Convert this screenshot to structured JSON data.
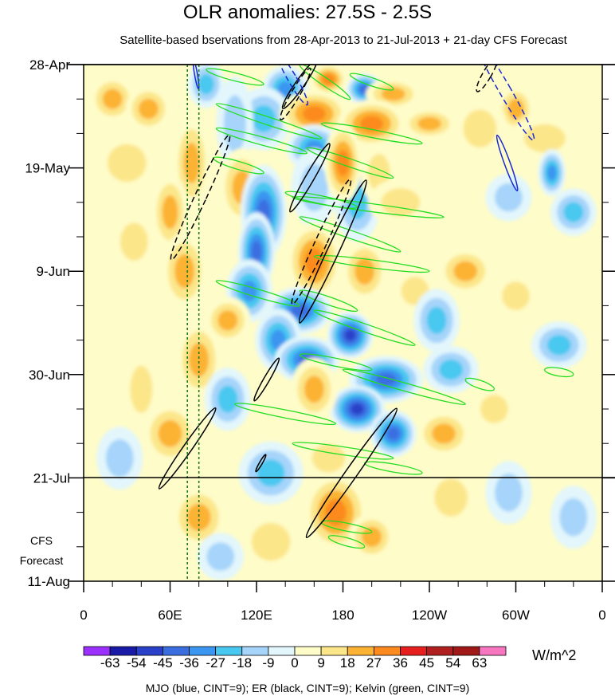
{
  "title": "OLR anomalies: 27.5S - 2.5S",
  "subtitle": "Satellite-based bservations from 28-Apr-2013 to 21-Jul-2013 + 21-day CFS Forecast",
  "chart_data": {
    "type": "heatmap",
    "title": "OLR anomalies: 27.5S - 2.5S",
    "subtitle": "Satellite-based bservations from 28-Apr-2013 to 21-Jul-2013 + 21-day CFS Forecast",
    "x_axis": {
      "ticks": [
        "0",
        "60E",
        "120E",
        "180",
        "120W",
        "60W",
        "0"
      ],
      "range_deg_east": [
        0,
        360
      ]
    },
    "y_axis": {
      "ticks": [
        "28-Apr",
        "19-May",
        "9-Jun",
        "30-Jun",
        "21-Jul",
        "11-Aug"
      ],
      "range": [
        "28-Apr-2013",
        "11-Aug-2013"
      ],
      "observation_end": "21-Jul"
    },
    "forecast_note": [
      "CFS",
      "Forecast"
    ],
    "colorbar": {
      "units": "W/m^2",
      "levels": [
        -63,
        -54,
        -45,
        -36,
        -27,
        -18,
        -9,
        0,
        9,
        18,
        27,
        36,
        45,
        54,
        63
      ],
      "colors": [
        "#9b30ff",
        "#1a1aa8",
        "#2a40c8",
        "#3a6ee0",
        "#3a96f0",
        "#48c8f0",
        "#a6d4fa",
        "#e2f6fc",
        "#fefcc8",
        "#fce68a",
        "#fcb232",
        "#fc8a1e",
        "#e61e1e",
        "#b02020",
        "#a01818",
        "#f876c0"
      ]
    },
    "vertical_reference_lines_deg_east": [
      72,
      80
    ],
    "contour_legend": "MJO (blue, CINT=9); ER (black, CINT=9); Kelvin (green, CINT=9)",
    "series": [
      {
        "name": "MJO",
        "color": "#1a2ad0"
      },
      {
        "name": "ER",
        "color": "#000000"
      },
      {
        "name": "Kelvin",
        "color": "#22dd22"
      }
    ],
    "blobs": [
      {
        "lon": 140,
        "day": 5,
        "rx": 10,
        "ry": 3,
        "v": -36
      },
      {
        "lon": 170,
        "day": 3,
        "rx": 8,
        "ry": 2,
        "v": 36
      },
      {
        "lon": 195,
        "day": 5,
        "rx": 8,
        "ry": 2,
        "v": -45
      },
      {
        "lon": 215,
        "day": 6,
        "rx": 12,
        "ry": 2,
        "v": 27
      },
      {
        "lon": 125,
        "day": 11,
        "rx": 12,
        "ry": 4,
        "v": -27
      },
      {
        "lon": 160,
        "day": 10,
        "rx": 15,
        "ry": 3,
        "v": 36
      },
      {
        "lon": 200,
        "day": 12,
        "rx": 15,
        "ry": 3,
        "v": 36
      },
      {
        "lon": 240,
        "day": 12,
        "rx": 12,
        "ry": 2,
        "v": 27
      },
      {
        "lon": 20,
        "day": 7,
        "rx": 10,
        "ry": 3,
        "v": 27
      },
      {
        "lon": 45,
        "day": 9,
        "rx": 10,
        "ry": 3,
        "v": 27
      },
      {
        "lon": 85,
        "day": 4,
        "rx": 8,
        "ry": 3,
        "v": -27
      },
      {
        "lon": 105,
        "day": 12,
        "rx": 8,
        "ry": 6,
        "v": -18
      },
      {
        "lon": 160,
        "day": 17,
        "rx": 12,
        "ry": 3,
        "v": -36
      },
      {
        "lon": 300,
        "day": 9,
        "rx": 8,
        "ry": 3,
        "v": 27
      },
      {
        "lon": 275,
        "day": 13,
        "rx": 12,
        "ry": 4,
        "v": 18
      },
      {
        "lon": 320,
        "day": 15,
        "rx": 15,
        "ry": 3,
        "v": 18
      },
      {
        "lon": 325,
        "day": 22,
        "rx": 6,
        "ry": 3,
        "v": -36
      },
      {
        "lon": 30,
        "day": 20,
        "rx": 14,
        "ry": 4,
        "v": 18
      },
      {
        "lon": 75,
        "day": 20,
        "rx": 8,
        "ry": 6,
        "v": 27
      },
      {
        "lon": 110,
        "day": 25,
        "rx": 10,
        "ry": 5,
        "v": 27
      },
      {
        "lon": 125,
        "day": 30,
        "rx": 10,
        "ry": 6,
        "v": -45
      },
      {
        "lon": 120,
        "day": 38,
        "rx": 8,
        "ry": 5,
        "v": -45
      },
      {
        "lon": 160,
        "day": 25,
        "rx": 10,
        "ry": 5,
        "v": -18
      },
      {
        "lon": 190,
        "day": 28,
        "rx": 10,
        "ry": 5,
        "v": -27
      },
      {
        "lon": 180,
        "day": 20,
        "rx": 8,
        "ry": 5,
        "v": 36
      },
      {
        "lon": 205,
        "day": 22,
        "rx": 8,
        "ry": 4,
        "v": 18
      },
      {
        "lon": 220,
        "day": 28,
        "rx": 14,
        "ry": 3,
        "v": 18
      },
      {
        "lon": 295,
        "day": 27,
        "rx": 10,
        "ry": 3,
        "v": -18
      },
      {
        "lon": 340,
        "day": 30,
        "rx": 10,
        "ry": 3,
        "v": -27
      },
      {
        "lon": 60,
        "day": 30,
        "rx": 8,
        "ry": 5,
        "v": 27
      },
      {
        "lon": 35,
        "day": 36,
        "rx": 10,
        "ry": 4,
        "v": 18
      },
      {
        "lon": 160,
        "day": 40,
        "rx": 12,
        "ry": 5,
        "v": 36
      },
      {
        "lon": 195,
        "day": 42,
        "rx": 10,
        "ry": 4,
        "v": 27
      },
      {
        "lon": 230,
        "day": 46,
        "rx": 10,
        "ry": 3,
        "v": 18
      },
      {
        "lon": 265,
        "day": 42,
        "rx": 12,
        "ry": 3,
        "v": 27
      },
      {
        "lon": 300,
        "day": 47,
        "rx": 10,
        "ry": 3,
        "v": 18
      },
      {
        "lon": 115,
        "day": 46,
        "rx": 10,
        "ry": 4,
        "v": -36
      },
      {
        "lon": 150,
        "day": 50,
        "rx": 14,
        "ry": 3,
        "v": -45
      },
      {
        "lon": 185,
        "day": 55,
        "rx": 10,
        "ry": 3,
        "v": -54
      },
      {
        "lon": 70,
        "day": 42,
        "rx": 10,
        "ry": 5,
        "v": 27
      },
      {
        "lon": 245,
        "day": 52,
        "rx": 10,
        "ry": 4,
        "v": -27
      },
      {
        "lon": 330,
        "day": 57,
        "rx": 12,
        "ry": 3,
        "v": -27
      },
      {
        "lon": 100,
        "day": 52,
        "rx": 10,
        "ry": 3,
        "v": 27
      },
      {
        "lon": 135,
        "day": 56,
        "rx": 10,
        "ry": 4,
        "v": -36
      },
      {
        "lon": 155,
        "day": 60,
        "rx": 14,
        "ry": 3,
        "v": -45
      },
      {
        "lon": 210,
        "day": 64,
        "rx": 16,
        "ry": 3,
        "v": -45
      },
      {
        "lon": 255,
        "day": 62,
        "rx": 12,
        "ry": 3,
        "v": -27
      },
      {
        "lon": 80,
        "day": 60,
        "rx": 10,
        "ry": 5,
        "v": 27
      },
      {
        "lon": 190,
        "day": 70,
        "rx": 12,
        "ry": 3,
        "v": -54
      },
      {
        "lon": 215,
        "day": 75,
        "rx": 10,
        "ry": 3,
        "v": -45
      },
      {
        "lon": 100,
        "day": 68,
        "rx": 10,
        "ry": 4,
        "v": -27
      },
      {
        "lon": 160,
        "day": 66,
        "rx": 10,
        "ry": 4,
        "v": 27
      },
      {
        "lon": 250,
        "day": 75,
        "rx": 12,
        "ry": 3,
        "v": 27
      },
      {
        "lon": 285,
        "day": 70,
        "rx": 10,
        "ry": 3,
        "v": 18
      },
      {
        "lon": 40,
        "day": 66,
        "rx": 8,
        "ry": 5,
        "v": 18
      },
      {
        "lon": 60,
        "day": 75,
        "rx": 12,
        "ry": 4,
        "v": 27
      },
      {
        "lon": 25,
        "day": 80,
        "rx": 10,
        "ry": 4,
        "v": -18
      },
      {
        "lon": 130,
        "day": 83,
        "rx": 14,
        "ry": 4,
        "v": -27
      },
      {
        "lon": 170,
        "day": 80,
        "rx": 12,
        "ry": 3,
        "v": 18
      },
      {
        "lon": 175,
        "day": 91,
        "rx": 14,
        "ry": 5,
        "v": 36
      },
      {
        "lon": 200,
        "day": 96,
        "rx": 10,
        "ry": 3,
        "v": 27
      },
      {
        "lon": 255,
        "day": 88,
        "rx": 12,
        "ry": 4,
        "v": 18
      },
      {
        "lon": 295,
        "day": 87,
        "rx": 10,
        "ry": 4,
        "v": -18
      },
      {
        "lon": 80,
        "day": 92,
        "rx": 12,
        "ry": 4,
        "v": 27
      },
      {
        "lon": 130,
        "day": 97,
        "rx": 14,
        "ry": 4,
        "v": 18
      },
      {
        "lon": 340,
        "day": 92,
        "rx": 10,
        "ry": 4,
        "v": -18
      },
      {
        "lon": 95,
        "day": 100,
        "rx": 10,
        "ry": 3,
        "v": -18
      }
    ],
    "kelvin_bands": [
      {
        "lon1": 85,
        "d1": 1,
        "lon2": 125,
        "d2": 4
      },
      {
        "lon1": 150,
        "d1": 0,
        "lon2": 185,
        "d2": 7
      },
      {
        "lon1": 185,
        "d1": 2,
        "lon2": 215,
        "d2": 5
      },
      {
        "lon1": 92,
        "d1": 8,
        "lon2": 165,
        "d2": 15
      },
      {
        "lon1": 165,
        "d1": 12,
        "lon2": 235,
        "d2": 16
      },
      {
        "lon1": 92,
        "d1": 13,
        "lon2": 155,
        "d2": 18
      },
      {
        "lon1": 155,
        "d1": 17,
        "lon2": 215,
        "d2": 23
      },
      {
        "lon1": 90,
        "d1": 19,
        "lon2": 125,
        "d2": 22
      },
      {
        "lon1": 145,
        "d1": 27,
        "lon2": 250,
        "d2": 31
      },
      {
        "lon1": 140,
        "d1": 26,
        "lon2": 190,
        "d2": 29
      },
      {
        "lon1": 150,
        "d1": 31,
        "lon2": 220,
        "d2": 38
      },
      {
        "lon1": 160,
        "d1": 39,
        "lon2": 240,
        "d2": 42
      },
      {
        "lon1": 92,
        "d1": 44,
        "lon2": 150,
        "d2": 49
      },
      {
        "lon1": 150,
        "d1": 46,
        "lon2": 190,
        "d2": 50
      },
      {
        "lon1": 160,
        "d1": 50,
        "lon2": 230,
        "d2": 57
      },
      {
        "lon1": 150,
        "d1": 59,
        "lon2": 200,
        "d2": 62
      },
      {
        "lon1": 180,
        "d1": 62,
        "lon2": 265,
        "d2": 69
      },
      {
        "lon1": 265,
        "d1": 64,
        "lon2": 285,
        "d2": 66
      },
      {
        "lon1": 105,
        "d1": 69,
        "lon2": 175,
        "d2": 73
      },
      {
        "lon1": 145,
        "d1": 77,
        "lon2": 215,
        "d2": 80
      },
      {
        "lon1": 195,
        "d1": 81,
        "lon2": 235,
        "d2": 83
      },
      {
        "lon1": 165,
        "d1": 93,
        "lon2": 200,
        "d2": 95
      },
      {
        "lon1": 170,
        "d1": 96,
        "lon2": 195,
        "d2": 98
      },
      {
        "lon1": 320,
        "d1": 62,
        "lon2": 340,
        "d2": 63
      }
    ],
    "er_ellipses": [
      {
        "lon": 150,
        "day": 4,
        "rx": 3,
        "ry": 6,
        "rot": 35,
        "dash": false
      },
      {
        "lon": 157,
        "day": 23,
        "rx": 3,
        "ry": 8,
        "rot": 30,
        "dash": false
      },
      {
        "lon": 165,
        "day": 36,
        "rx": 4,
        "ry": 14,
        "rot": 25,
        "dash": true
      },
      {
        "lon": 173,
        "day": 38,
        "rx": 4,
        "ry": 16,
        "rot": 25,
        "dash": false
      },
      {
        "lon": 81,
        "day": 27,
        "rx": 4,
        "ry": 14,
        "rot": 25,
        "dash": true
      },
      {
        "lon": 147,
        "day": 6,
        "rx": 3,
        "ry": 6,
        "rot": 30,
        "dash": true
      },
      {
        "lon": 280,
        "day": 2,
        "rx": 3,
        "ry": 4,
        "rot": 30,
        "dash": true
      },
      {
        "lon": 127,
        "day": 64,
        "rx": 2,
        "ry": 5,
        "rot": 30,
        "dash": false
      },
      {
        "lon": 72,
        "day": 78,
        "rx": 3,
        "ry": 10,
        "rot": 35,
        "dash": false
      },
      {
        "lon": 186,
        "day": 83,
        "rx": 4,
        "ry": 16,
        "rot": 35,
        "dash": false
      },
      {
        "lon": 123,
        "day": 81,
        "rx": 1,
        "ry": 2,
        "rot": 30,
        "dash": false
      }
    ],
    "mjo_ellipses": [
      {
        "lon": 145,
        "day": 3,
        "rx": 3,
        "ry": 6,
        "rot": -30,
        "dash": true
      },
      {
        "lon": 292,
        "day": 5,
        "rx": 4,
        "ry": 12,
        "rot": -30,
        "dash": true
      },
      {
        "lon": 294,
        "day": 20,
        "rx": 2,
        "ry": 6,
        "rot": -20,
        "dash": false
      },
      {
        "lon": 78,
        "day": 2,
        "rx": 1,
        "ry": 3,
        "rot": -10,
        "dash": false
      }
    ]
  },
  "colorbar_tick_labels": [
    "-63",
    "-54",
    "-45",
    "-36",
    "-27",
    "-18",
    "-9",
    "0",
    "9",
    "18",
    "27",
    "36",
    "45",
    "54",
    "63"
  ],
  "units": "W/m^2",
  "cfs_note_line1": "CFS",
  "cfs_note_line2": "Forecast",
  "contour_note": "MJO (blue, CINT=9); ER (black, CINT=9); Kelvin (green, CINT=9)"
}
